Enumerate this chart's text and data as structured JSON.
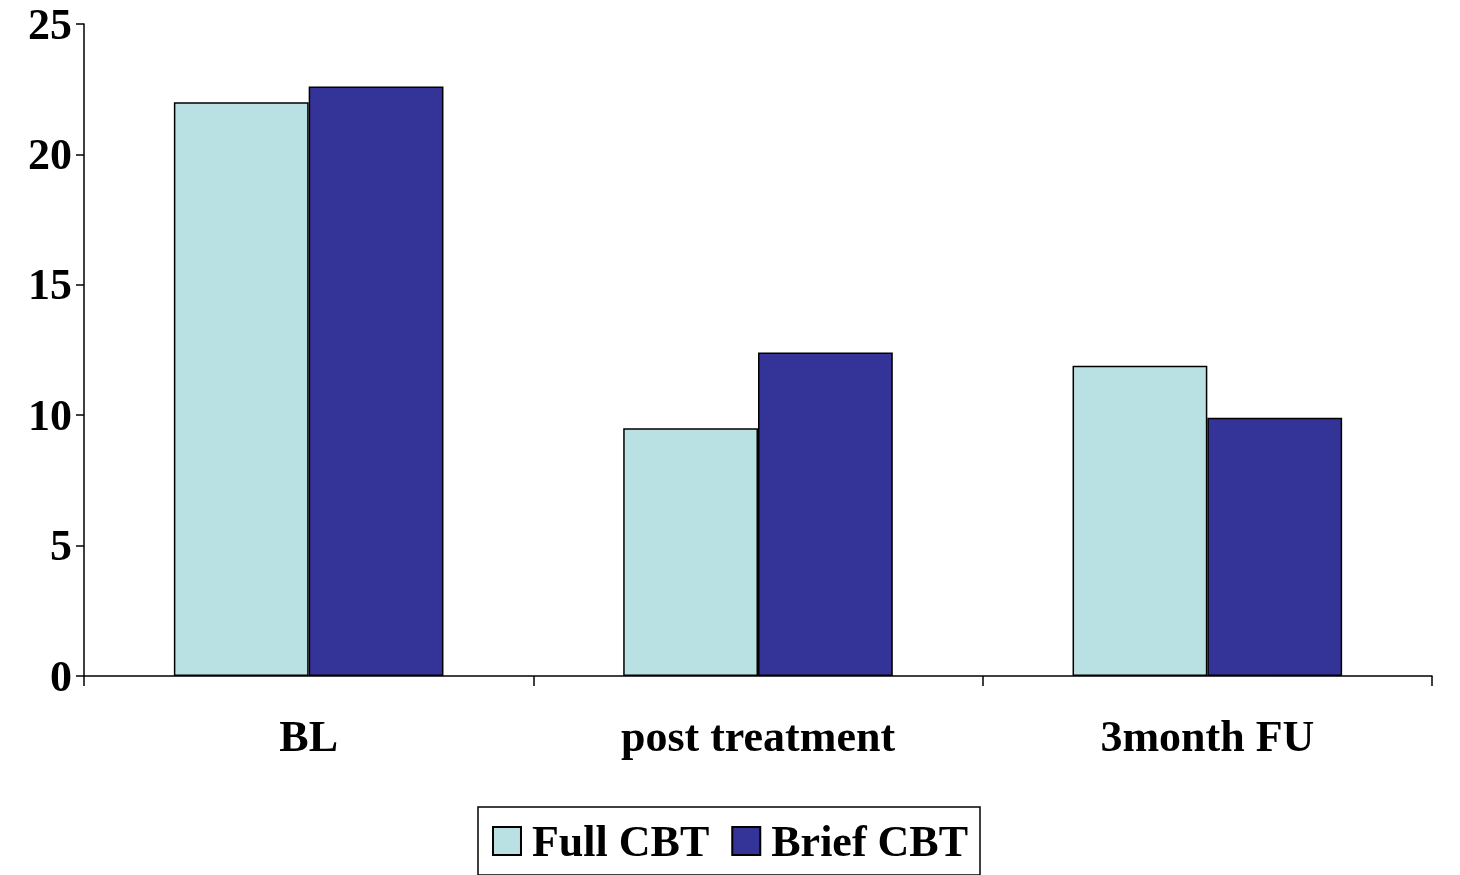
{
  "chart_data": {
    "type": "bar",
    "categories": [
      "BL",
      "post treatment",
      "3month FU"
    ],
    "series": [
      {
        "name": "Full CBT",
        "color": "#b9e0e3",
        "values": [
          22.0,
          9.5,
          11.9
        ]
      },
      {
        "name": "Brief CBT",
        "color": "#343397",
        "values": [
          22.6,
          12.4,
          9.9
        ]
      }
    ],
    "ylim": [
      0,
      25
    ],
    "yticks": [
      0,
      5,
      10,
      15,
      20,
      25
    ],
    "grid": false,
    "legend": "bottom"
  }
}
